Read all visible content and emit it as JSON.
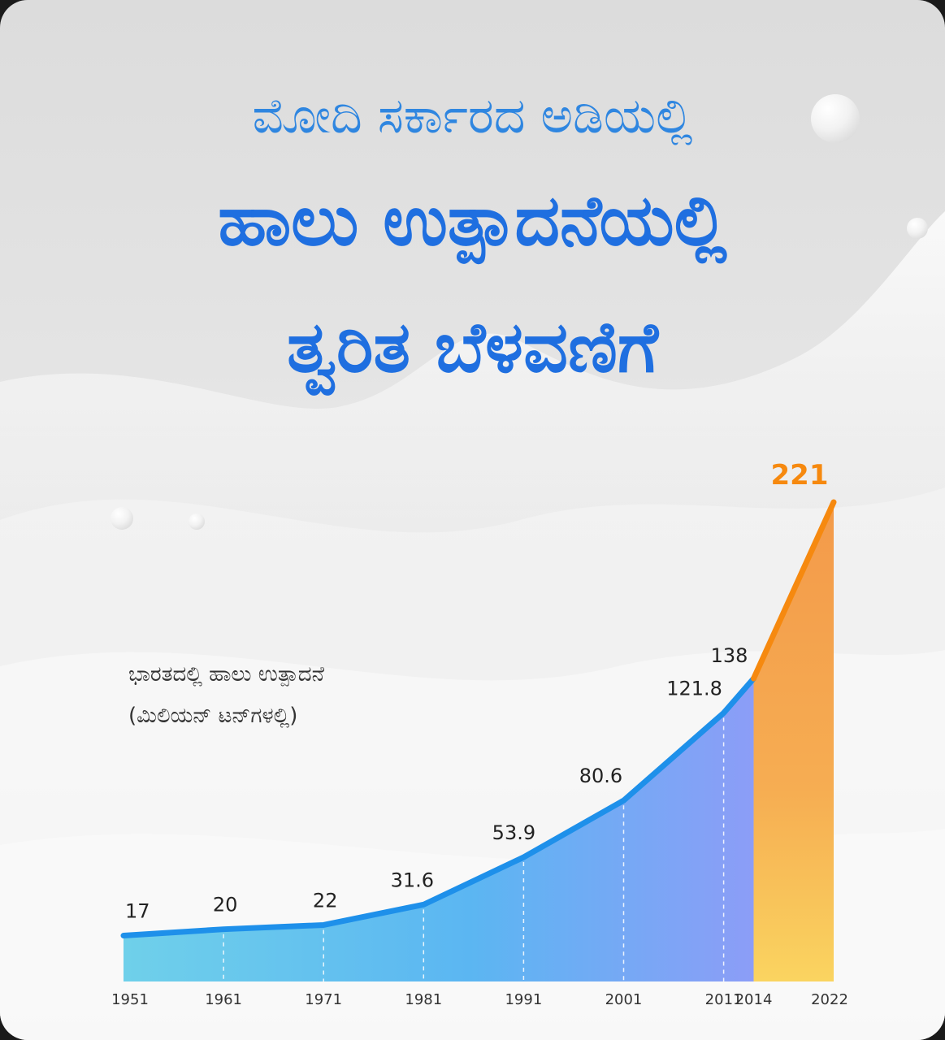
{
  "titles": {
    "line1": "ಮೋದಿ ಸರ್ಕಾರದ ಅಡಿಯಲ್ಲಿ",
    "line2": "ಹಾಲು ಉತ್ಪಾದನೆಯಲ್ಲಿ",
    "line3": "ತ್ವರಿತ ಬೆಳವಣಿಗೆ"
  },
  "colors": {
    "title": "#1f6fe0",
    "line_blue": "#1e90ea",
    "line_orange": "#f6890f",
    "highlight_label": "#f6890f"
  },
  "chart_data": {
    "type": "area",
    "title": "ಭಾರತದಲ್ಲಿ ಹಾಲು ಉತ್ಪಾದನೆ",
    "subtitle": "(ಮಿಲಿಯನ್ ಟನ್‌ಗಳಲ್ಲಿ)",
    "x": [
      "1951",
      "1961",
      "1971",
      "1981",
      "1991",
      "2001",
      "2011",
      "2014",
      "2022"
    ],
    "values": [
      17,
      20,
      22,
      31.6,
      53.9,
      80.6,
      121.8,
      138,
      221
    ],
    "labels": [
      "17",
      "20",
      "22",
      "31.6",
      "53.9",
      "80.6",
      "121.8",
      "138",
      "221"
    ],
    "highlight_from": "2014",
    "ylim": [
      0,
      221
    ],
    "grid": false
  }
}
